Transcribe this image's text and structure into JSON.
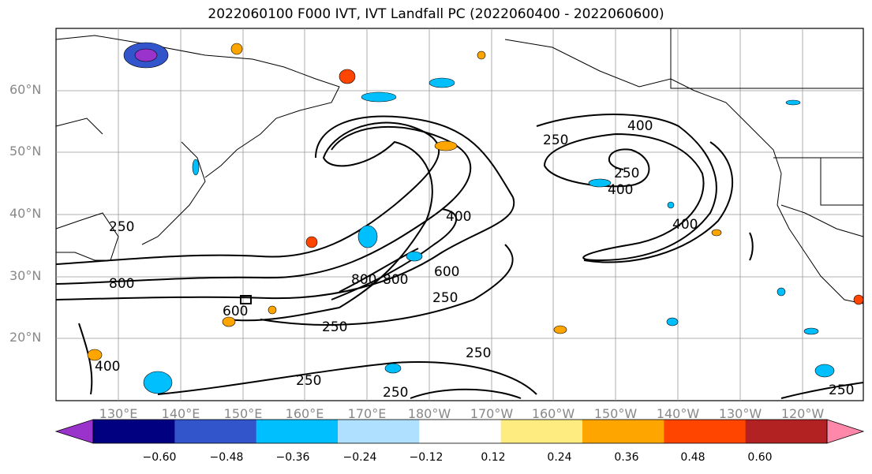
{
  "title": "2022060100 F000 IVT, IVT Landfall PC (2022060400 - 2022060600)",
  "lat_labels": [
    "60°N",
    "50°N",
    "40°N",
    "30°N",
    "20°N"
  ],
  "lon_labels": [
    "130°E",
    "140°E",
    "150°E",
    "160°E",
    "170°E",
    "180°W",
    "170°W",
    "160°W",
    "150°W",
    "140°W",
    "130°W",
    "120°W"
  ],
  "contour_labels": [
    "250",
    "400",
    "600",
    "800"
  ],
  "colorbar": {
    "ticks": [
      "−0.60",
      "−0.48",
      "−0.36",
      "−0.24",
      "−0.12",
      "0.12",
      "0.24",
      "0.36",
      "0.48",
      "0.60"
    ],
    "colors": [
      "#9933cc",
      "#000080",
      "#3355cc",
      "#00bfff",
      "#b0e0ff",
      "#ffffff",
      "#ffec80",
      "#ffa500",
      "#ff4500",
      "#b22222",
      "#ff88aa"
    ]
  }
}
